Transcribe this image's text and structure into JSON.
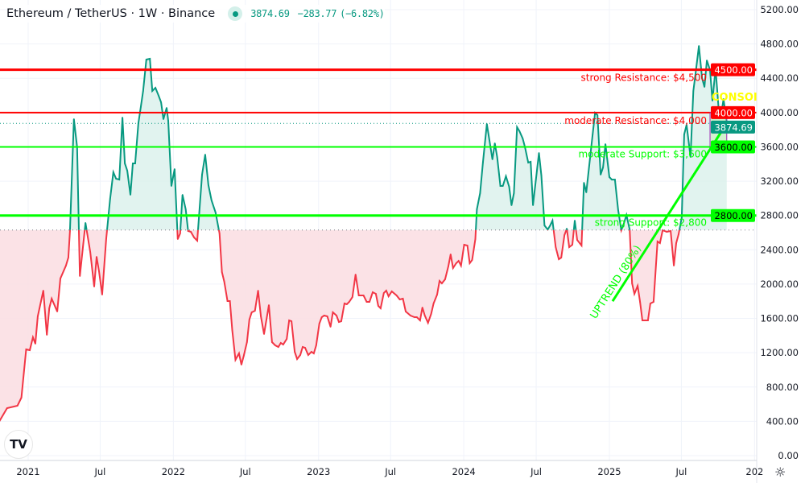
{
  "header": {
    "title": "Ethereum / TetherUS · 1W · Binance",
    "last_price": "3874.69",
    "change": "−283.77",
    "change_pct": "(−6.82%)",
    "status_color": "#089981"
  },
  "logo": "TradingView",
  "icons": {
    "market_status": "dot-icon",
    "settings": "sun-gear-icon",
    "logo": "tradingview-logo"
  },
  "colors": {
    "up": "#089981",
    "down": "#f23645",
    "up_fill": "#d9f0eb",
    "down_fill": "#fbdfe3",
    "resistance": "#ff0000",
    "support": "#00ff00",
    "consolidation_text": "#ffff00",
    "consolidation_border": "#9c27b0"
  },
  "chart_data": {
    "type": "area",
    "style": "baseline",
    "baseline": 2630,
    "ylim": [
      0,
      5200
    ],
    "yticks": [
      "0.00",
      "400.00",
      "800.00",
      "1200.00",
      "1600.00",
      "2000.00",
      "2400.00",
      "2800.00",
      "3200.00",
      "3600.00",
      "4000.00",
      "4400.00",
      "4800.00",
      "5200.00"
    ],
    "xticks": [
      {
        "label": "2021",
        "date": "2021-01-01"
      },
      {
        "label": "Jul",
        "date": "2021-07-01"
      },
      {
        "label": "2022",
        "date": "2022-01-01"
      },
      {
        "label": "Jul",
        "date": "2022-07-01"
      },
      {
        "label": "2023",
        "date": "2023-01-01"
      },
      {
        "label": "Jul",
        "date": "2023-07-01"
      },
      {
        "label": "2024",
        "date": "2024-01-01"
      },
      {
        "label": "Jul",
        "date": "2024-07-01"
      },
      {
        "label": "2025",
        "date": "2025-01-01"
      },
      {
        "label": "Jul",
        "date": "2025-07-01"
      },
      {
        "label": "202",
        "date": "2026-01-01"
      }
    ],
    "grid": true,
    "series": [
      {
        "points": [
          [
            "2020-10-21",
            404
          ],
          [
            "2020-11-09",
            554
          ],
          [
            "2020-12-05",
            582
          ],
          [
            "2020-12-15",
            676
          ],
          [
            "2020-12-27",
            1239
          ],
          [
            "2021-01-05",
            1230
          ],
          [
            "2021-01-13",
            1380
          ],
          [
            "2021-01-19",
            1305
          ],
          [
            "2021-01-25",
            1624
          ],
          [
            "2021-02-08",
            1924
          ],
          [
            "2021-02-17",
            1408
          ],
          [
            "2021-02-23",
            1718
          ],
          [
            "2021-03-01",
            1830
          ],
          [
            "2021-03-15",
            1680
          ],
          [
            "2021-03-23",
            2065
          ],
          [
            "2021-04-06",
            2215
          ],
          [
            "2021-04-12",
            2309
          ],
          [
            "2021-04-16",
            2619
          ],
          [
            "2021-04-26",
            3923
          ],
          [
            "2021-05-04",
            3595
          ],
          [
            "2021-05-11",
            2093
          ],
          [
            "2021-05-25",
            2713
          ],
          [
            "2021-06-06",
            2375
          ],
          [
            "2021-06-16",
            1971
          ],
          [
            "2021-06-22",
            2318
          ],
          [
            "2021-06-28",
            2149
          ],
          [
            "2021-07-06",
            1877
          ],
          [
            "2021-07-16",
            2525
          ],
          [
            "2021-07-26",
            2994
          ],
          [
            "2021-08-03",
            3304
          ],
          [
            "2021-08-10",
            3229
          ],
          [
            "2021-08-18",
            3219
          ],
          [
            "2021-08-26",
            3942
          ],
          [
            "2021-09-01",
            3407
          ],
          [
            "2021-09-07",
            3323
          ],
          [
            "2021-09-15",
            3041
          ],
          [
            "2021-09-21",
            3407
          ],
          [
            "2021-09-27",
            3407
          ],
          [
            "2021-10-05",
            3876
          ],
          [
            "2021-10-11",
            4064
          ],
          [
            "2021-10-17",
            4252
          ],
          [
            "2021-10-25",
            4618
          ],
          [
            "2021-11-03",
            4627
          ],
          [
            "2021-11-09",
            4252
          ],
          [
            "2021-11-17",
            4289
          ],
          [
            "2021-11-25",
            4196
          ],
          [
            "2021-12-01",
            4120
          ],
          [
            "2021-12-07",
            3923
          ],
          [
            "2021-12-15",
            4055
          ],
          [
            "2021-12-19",
            3905
          ],
          [
            "2021-12-27",
            3144
          ],
          [
            "2022-01-04",
            3341
          ],
          [
            "2022-01-12",
            2525
          ],
          [
            "2022-01-18",
            2591
          ],
          [
            "2022-01-24",
            3041
          ],
          [
            "2022-02-01",
            2872
          ],
          [
            "2022-02-07",
            2619
          ],
          [
            "2022-02-14",
            2609
          ],
          [
            "2022-02-22",
            2544
          ],
          [
            "2022-03-02",
            2506
          ],
          [
            "2022-03-14",
            3276
          ],
          [
            "2022-03-22",
            3510
          ],
          [
            "2022-03-30",
            3154
          ],
          [
            "2022-04-07",
            2975
          ],
          [
            "2022-04-17",
            2835
          ],
          [
            "2022-04-27",
            2591
          ],
          [
            "2022-05-03",
            2140
          ],
          [
            "2022-05-09",
            2027
          ],
          [
            "2022-05-17",
            1802
          ],
          [
            "2022-05-23",
            1802
          ],
          [
            "2022-05-29",
            1464
          ],
          [
            "2022-06-06",
            1117
          ],
          [
            "2022-06-15",
            1192
          ],
          [
            "2022-06-21",
            1061
          ],
          [
            "2022-06-27",
            1164
          ],
          [
            "2022-07-05",
            1323
          ],
          [
            "2022-07-11",
            1586
          ],
          [
            "2022-07-17",
            1671
          ],
          [
            "2022-07-25",
            1689
          ],
          [
            "2022-08-02",
            1924
          ],
          [
            "2022-08-09",
            1624
          ],
          [
            "2022-08-17",
            1417
          ],
          [
            "2022-08-29",
            1755
          ],
          [
            "2022-09-06",
            1323
          ],
          [
            "2022-09-14",
            1286
          ],
          [
            "2022-09-22",
            1267
          ],
          [
            "2022-09-28",
            1314
          ],
          [
            "2022-10-04",
            1295
          ],
          [
            "2022-10-13",
            1361
          ],
          [
            "2022-10-19",
            1577
          ],
          [
            "2022-10-25",
            1567
          ],
          [
            "2022-11-02",
            1211
          ],
          [
            "2022-11-08",
            1126
          ],
          [
            "2022-11-16",
            1173
          ],
          [
            "2022-11-22",
            1267
          ],
          [
            "2022-11-28",
            1258
          ],
          [
            "2022-12-06",
            1173
          ],
          [
            "2022-12-14",
            1211
          ],
          [
            "2022-12-20",
            1192
          ],
          [
            "2022-12-26",
            1286
          ],
          [
            "2023-01-03",
            1539
          ],
          [
            "2023-01-09",
            1614
          ],
          [
            "2023-01-15",
            1633
          ],
          [
            "2023-01-23",
            1624
          ],
          [
            "2023-01-31",
            1502
          ],
          [
            "2023-02-06",
            1671
          ],
          [
            "2023-02-15",
            1633
          ],
          [
            "2023-02-21",
            1558
          ],
          [
            "2023-02-27",
            1567
          ],
          [
            "2023-03-07",
            1774
          ],
          [
            "2023-03-13",
            1765
          ],
          [
            "2023-03-19",
            1793
          ],
          [
            "2023-03-27",
            1849
          ],
          [
            "2023-04-04",
            2112
          ],
          [
            "2023-04-12",
            1868
          ],
          [
            "2023-04-24",
            1868
          ],
          [
            "2023-05-02",
            1793
          ],
          [
            "2023-05-09",
            1793
          ],
          [
            "2023-05-17",
            1905
          ],
          [
            "2023-05-25",
            1887
          ],
          [
            "2023-05-31",
            1746
          ],
          [
            "2023-06-06",
            1718
          ],
          [
            "2023-06-14",
            1896
          ],
          [
            "2023-06-20",
            1924
          ],
          [
            "2023-06-26",
            1858
          ],
          [
            "2023-07-04",
            1915
          ],
          [
            "2023-07-16",
            1868
          ],
          [
            "2023-07-24",
            1821
          ],
          [
            "2023-08-01",
            1830
          ],
          [
            "2023-08-08",
            1680
          ],
          [
            "2023-08-20",
            1633
          ],
          [
            "2023-08-30",
            1614
          ],
          [
            "2023-09-05",
            1614
          ],
          [
            "2023-09-13",
            1577
          ],
          [
            "2023-09-19",
            1727
          ],
          [
            "2023-09-25",
            1633
          ],
          [
            "2023-10-03",
            1549
          ],
          [
            "2023-10-11",
            1652
          ],
          [
            "2023-10-17",
            1774
          ],
          [
            "2023-10-26",
            1877
          ],
          [
            "2023-11-01",
            2037
          ],
          [
            "2023-11-07",
            2009
          ],
          [
            "2023-11-15",
            2056
          ],
          [
            "2023-11-23",
            2206
          ],
          [
            "2023-11-29",
            2347
          ],
          [
            "2023-12-05",
            2187
          ],
          [
            "2023-12-13",
            2243
          ],
          [
            "2023-12-19",
            2271
          ],
          [
            "2023-12-25",
            2215
          ],
          [
            "2024-01-02",
            2459
          ],
          [
            "2024-01-10",
            2450
          ],
          [
            "2024-01-16",
            2243
          ],
          [
            "2024-01-22",
            2281
          ],
          [
            "2024-01-30",
            2525
          ],
          [
            "2024-02-03",
            2872
          ],
          [
            "2024-02-11",
            3060
          ],
          [
            "2024-02-18",
            3417
          ],
          [
            "2024-02-28",
            3867
          ],
          [
            "2024-03-13",
            3454
          ],
          [
            "2024-03-19",
            3642
          ],
          [
            "2024-03-25",
            3482
          ],
          [
            "2024-04-02",
            3144
          ],
          [
            "2024-04-08",
            3144
          ],
          [
            "2024-04-16",
            3257
          ],
          [
            "2024-04-24",
            3135
          ],
          [
            "2024-04-30",
            2919
          ],
          [
            "2024-05-06",
            3060
          ],
          [
            "2024-05-14",
            3830
          ],
          [
            "2024-05-20",
            3783
          ],
          [
            "2024-05-28",
            3698
          ],
          [
            "2024-06-03",
            3595
          ],
          [
            "2024-06-11",
            3417
          ],
          [
            "2024-06-17",
            3426
          ],
          [
            "2024-06-23",
            2919
          ],
          [
            "2024-07-08",
            3529
          ],
          [
            "2024-07-14",
            3266
          ],
          [
            "2024-07-22",
            2684
          ],
          [
            "2024-07-30",
            2637
          ],
          [
            "2024-08-05",
            2684
          ],
          [
            "2024-08-11",
            2741
          ],
          [
            "2024-08-19",
            2431
          ],
          [
            "2024-08-27",
            2290
          ],
          [
            "2024-09-02",
            2309
          ],
          [
            "2024-09-10",
            2572
          ],
          [
            "2024-09-16",
            2647
          ],
          [
            "2024-09-22",
            2431
          ],
          [
            "2024-09-30",
            2459
          ],
          [
            "2024-10-06",
            2741
          ],
          [
            "2024-10-12",
            2515
          ],
          [
            "2024-10-23",
            2450
          ],
          [
            "2024-10-29",
            3182
          ],
          [
            "2024-11-04",
            3069
          ],
          [
            "2024-11-20",
            3745
          ],
          [
            "2024-11-26",
            3998
          ],
          [
            "2024-12-02",
            3970
          ],
          [
            "2024-12-10",
            3276
          ],
          [
            "2024-12-16",
            3360
          ],
          [
            "2024-12-22",
            3632
          ],
          [
            "2025-01-01",
            3248
          ],
          [
            "2025-01-07",
            3219
          ],
          [
            "2025-01-15",
            3219
          ],
          [
            "2025-01-23",
            2863
          ],
          [
            "2025-01-31",
            2628
          ],
          [
            "2025-02-06",
            2703
          ],
          [
            "2025-02-13",
            2806
          ],
          [
            "2025-02-21",
            2637
          ],
          [
            "2025-02-27",
            2009
          ],
          [
            "2025-03-05",
            1887
          ],
          [
            "2025-03-13",
            1980
          ],
          [
            "2025-03-19",
            1793
          ],
          [
            "2025-03-25",
            1577
          ],
          [
            "2025-04-08",
            1577
          ],
          [
            "2025-04-14",
            1774
          ],
          [
            "2025-04-22",
            1793
          ],
          [
            "2025-05-02",
            2497
          ],
          [
            "2025-05-08",
            2478
          ],
          [
            "2025-05-15",
            2628
          ],
          [
            "2025-05-25",
            2609
          ],
          [
            "2025-06-04",
            2619
          ],
          [
            "2025-06-12",
            2215
          ],
          [
            "2025-06-18",
            2478
          ],
          [
            "2025-06-24",
            2581
          ],
          [
            "2025-07-02",
            2778
          ],
          [
            "2025-07-08",
            3745
          ],
          [
            "2025-07-14",
            3858
          ],
          [
            "2025-07-24",
            3482
          ],
          [
            "2025-07-31",
            4252
          ],
          [
            "2025-08-06",
            4468
          ],
          [
            "2025-08-14",
            4777
          ],
          [
            "2025-08-22",
            4402
          ],
          [
            "2025-08-28",
            4299
          ],
          [
            "2025-09-03",
            4608
          ],
          [
            "2025-09-11",
            4496
          ],
          [
            "2025-09-17",
            4139
          ],
          [
            "2025-09-25",
            4515
          ],
          [
            "2025-10-03",
            4017
          ],
          [
            "2025-10-09",
            3980
          ],
          [
            "2025-10-15",
            4158
          ],
          [
            "2025-10-23",
            3874.69
          ]
        ]
      }
    ],
    "levels": [
      {
        "price": 4500,
        "tag": "4500.00",
        "label": "strong Resistance: $4,500",
        "kind": "resistance",
        "strong": true
      },
      {
        "price": 4000,
        "tag": "4000.00",
        "label": "moderate Resistance: $4,000",
        "kind": "resistance",
        "strong": false
      },
      {
        "price": 3600,
        "tag": "3600.00",
        "label": "moderate Support: $3,600",
        "kind": "support",
        "strong": false
      },
      {
        "price": 2800,
        "tag": "2800.00",
        "label": "strong Support: $2,800",
        "kind": "support",
        "strong": true
      }
    ],
    "current_price": {
      "price": 3874.69,
      "tag": "3874.69"
    },
    "trendline": {
      "label": "UPTREND (80%)",
      "start": [
        "2025-01-09",
        1800
      ],
      "end": [
        "2025-10-23",
        3874.69
      ]
    },
    "consolidation": {
      "label": "CONSOLI",
      "from": "2025-09-11",
      "to": "2025-10-23",
      "low": 3600,
      "high": 4000
    }
  }
}
